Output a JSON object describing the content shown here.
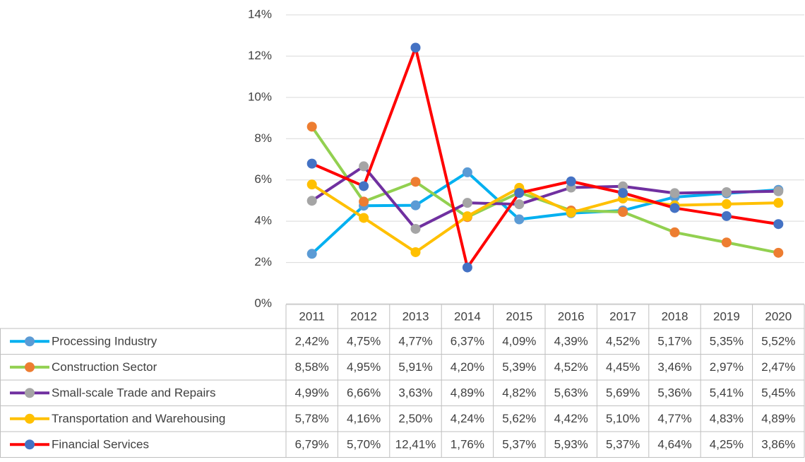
{
  "chart_data": {
    "type": "line",
    "categories": [
      "2011",
      "2012",
      "2013",
      "2014",
      "2015",
      "2016",
      "2017",
      "2018",
      "2019",
      "2020"
    ],
    "ylim": [
      0,
      14
    ],
    "yticks": [
      {
        "value": 0,
        "label": "0%"
      },
      {
        "value": 2,
        "label": "2%"
      },
      {
        "value": 4,
        "label": "4%"
      },
      {
        "value": 6,
        "label": "6%"
      },
      {
        "value": 8,
        "label": "8%"
      },
      {
        "value": 10,
        "label": "10%"
      },
      {
        "value": 12,
        "label": "12%"
      },
      {
        "value": 14,
        "label": "14%"
      }
    ],
    "grid": true,
    "series": [
      {
        "name": "Processing Industry",
        "color": "#00b0f0",
        "marker_color": "#5b9bd5",
        "values": [
          2.42,
          4.75,
          4.77,
          6.37,
          4.09,
          4.39,
          4.52,
          5.17,
          5.35,
          5.52
        ],
        "value_labels": [
          "2,42%",
          "4,75%",
          "4,77%",
          "6,37%",
          "4,09%",
          "4,39%",
          "4,52%",
          "5,17%",
          "5,35%",
          "5,52%"
        ]
      },
      {
        "name": "Construction Sector",
        "color": "#92d050",
        "marker_color": "#ed7d31",
        "values": [
          8.58,
          4.95,
          5.91,
          4.2,
          5.39,
          4.52,
          4.45,
          3.46,
          2.97,
          2.47
        ],
        "value_labels": [
          "8,58%",
          "4,95%",
          "5,91%",
          "4,20%",
          "5,39%",
          "4,52%",
          "4,45%",
          "3,46%",
          "2,97%",
          "2,47%"
        ]
      },
      {
        "name": "Small-scale Trade and Repairs",
        "color": "#7030a0",
        "marker_color": "#a5a5a5",
        "values": [
          4.99,
          6.66,
          3.63,
          4.89,
          4.82,
          5.63,
          5.69,
          5.36,
          5.41,
          5.45
        ],
        "value_labels": [
          "4,99%",
          "6,66%",
          "3,63%",
          "4,89%",
          "4,82%",
          "5,63%",
          "5,69%",
          "5,36%",
          "5,41%",
          "5,45%"
        ]
      },
      {
        "name": "Transportation and Warehousing",
        "color": "#ffc000",
        "marker_color": "#ffc000",
        "values": [
          5.78,
          4.16,
          2.5,
          4.24,
          5.62,
          4.42,
          5.1,
          4.77,
          4.83,
          4.89
        ],
        "value_labels": [
          "5,78%",
          "4,16%",
          "2,50%",
          "4,24%",
          "5,62%",
          "4,42%",
          "5,10%",
          "4,77%",
          "4,83%",
          "4,89%"
        ]
      },
      {
        "name": "Financial Services",
        "color": "#ff0000",
        "marker_color": "#4472c4",
        "values": [
          6.79,
          5.7,
          12.41,
          1.76,
          5.37,
          5.93,
          5.37,
          4.64,
          4.25,
          3.86
        ],
        "value_labels": [
          "6,79%",
          "5,70%",
          "12,41%",
          "1,76%",
          "5,37%",
          "5,93%",
          "5,37%",
          "4,64%",
          "4,25%",
          "3,86%"
        ]
      }
    ]
  }
}
